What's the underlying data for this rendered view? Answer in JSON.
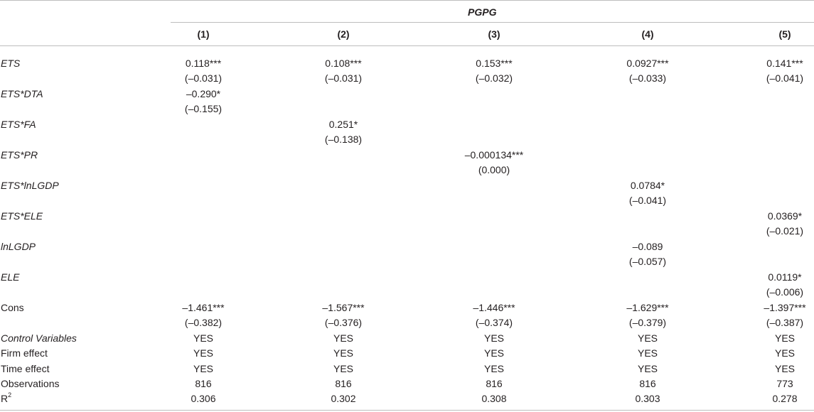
{
  "header": {
    "dep_var": "PGPG",
    "columns": [
      "(1)",
      "(2)",
      "(3)",
      "(4)",
      "(5)"
    ]
  },
  "rows": {
    "ets": {
      "label": "ETS",
      "coef": [
        "0.118***",
        "0.108***",
        "0.153***",
        "0.0927***",
        "0.141***"
      ],
      "se": [
        "(–0.031)",
        "(–0.031)",
        "(–0.032)",
        "(–0.033)",
        "(–0.041)"
      ]
    },
    "ets_dta": {
      "label": "ETS*DTA",
      "coef": [
        "–0.290*"
      ],
      "se": [
        "(–0.155)"
      ]
    },
    "ets_fa": {
      "label": "ETS*FA",
      "coef": [
        "0.251*"
      ],
      "se": [
        "(–0.138)"
      ]
    },
    "ets_pr": {
      "label": "ETS*PR",
      "coef": [
        "–0.000134***"
      ],
      "se": [
        "(0.000)"
      ]
    },
    "ets_lngdp": {
      "label": "ETS*lnLGDP",
      "coef": [
        "0.0784*"
      ],
      "se": [
        "(–0.041)"
      ]
    },
    "ets_ele": {
      "label": "ETS*ELE",
      "coef": [
        "0.0369*"
      ],
      "se": [
        "(–0.021)"
      ]
    },
    "lngdp": {
      "label": "lnLGDP",
      "coef": [
        "–0.089"
      ],
      "se": [
        "(–0.057)"
      ]
    },
    "ele": {
      "label": "ELE",
      "coef": [
        "0.0119*"
      ],
      "se": [
        "(–0.006)"
      ]
    },
    "cons": {
      "label": "Cons",
      "coef": [
        "–1.461***",
        "–1.567***",
        "–1.446***",
        "–1.629***",
        "–1.397***"
      ],
      "se": [
        "(–0.382)",
        "(–0.376)",
        "(–0.374)",
        "(–0.379)",
        "(–0.387)"
      ]
    },
    "controls": {
      "label": "Control Variables",
      "vals": [
        "YES",
        "YES",
        "YES",
        "YES",
        "YES"
      ]
    },
    "firm": {
      "label": "Firm effect",
      "vals": [
        "YES",
        "YES",
        "YES",
        "YES",
        "YES"
      ]
    },
    "time": {
      "label": "Time effect",
      "vals": [
        "YES",
        "YES",
        "YES",
        "YES",
        "YES"
      ]
    },
    "obs": {
      "label": "Observations",
      "vals": [
        "816",
        "816",
        "816",
        "816",
        "773"
      ]
    },
    "r2": {
      "label_base": "R",
      "label_sup": "2",
      "vals": [
        "0.306",
        "0.302",
        "0.308",
        "0.303",
        "0.278"
      ]
    }
  }
}
